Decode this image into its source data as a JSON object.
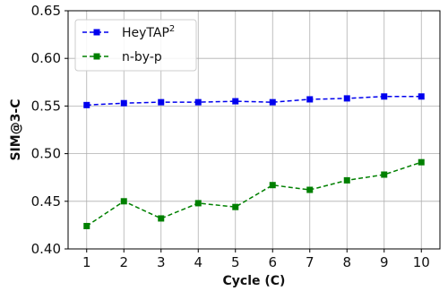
{
  "chart_data": {
    "type": "line",
    "xlabel": "Cycle (C)",
    "ylabel": "SIM@3-C",
    "x": [
      1,
      2,
      3,
      4,
      5,
      6,
      7,
      8,
      9,
      10
    ],
    "xticks": [
      "1",
      "2",
      "3",
      "4",
      "5",
      "6",
      "7",
      "8",
      "9",
      "10"
    ],
    "xlim": [
      0.5,
      10.5
    ],
    "ylim": [
      0.4,
      0.65
    ],
    "yticks": [
      0.4,
      0.45,
      0.5,
      0.55,
      0.6,
      0.65
    ],
    "ytick_labels": [
      "0.40",
      "0.45",
      "0.50",
      "0.55",
      "0.60",
      "0.65"
    ],
    "grid": true,
    "legend_position": "top-left",
    "series": [
      {
        "name": "HeyTAP",
        "name_sup": "2",
        "color": "#0000ee",
        "marker": "square",
        "line_style": "dashed",
        "values": [
          0.551,
          0.553,
          0.554,
          0.554,
          0.555,
          0.554,
          0.557,
          0.558,
          0.56,
          0.56
        ]
      },
      {
        "name": "n-by-p",
        "color": "#008000",
        "marker": "square",
        "line_style": "dashed",
        "values": [
          0.424,
          0.45,
          0.432,
          0.448,
          0.444,
          0.467,
          0.462,
          0.472,
          0.478,
          0.491
        ]
      }
    ]
  }
}
